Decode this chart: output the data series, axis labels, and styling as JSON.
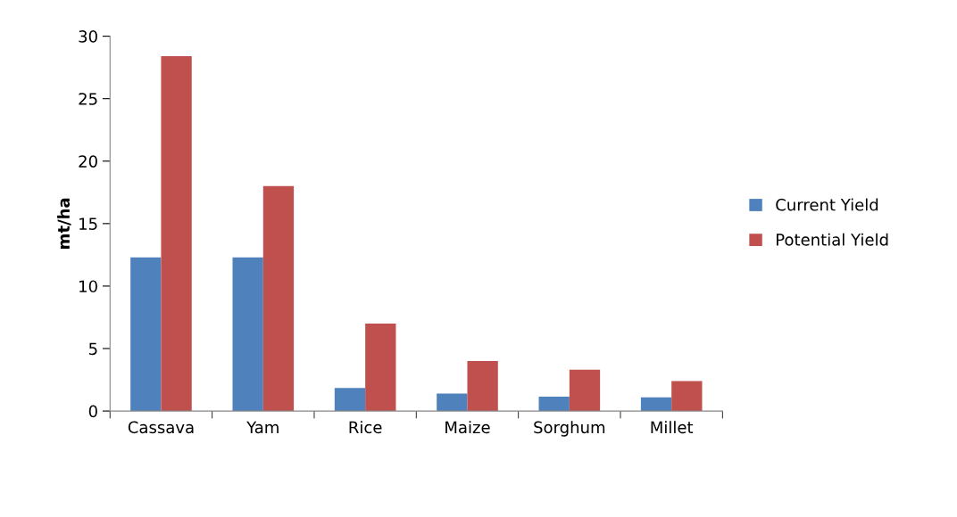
{
  "chart_data": {
    "type": "bar",
    "ylabel": "mt/ha",
    "categories": [
      "Cassava",
      "Yam",
      "Rice",
      "Maize",
      "Sorghum",
      "Millet"
    ],
    "series": [
      {
        "name": "Current Yield",
        "color": "#4f81bd",
        "values": [
          12.3,
          12.3,
          1.85,
          1.4,
          1.15,
          1.1
        ]
      },
      {
        "name": "Potential Yield",
        "color": "#c0504d",
        "values": [
          28.4,
          18.0,
          7.0,
          4.0,
          3.3,
          2.4
        ]
      }
    ],
    "ylim": [
      0,
      30
    ],
    "yticks": [
      0,
      5,
      10,
      15,
      20,
      25,
      30
    ],
    "grid": false,
    "legend": "right"
  }
}
